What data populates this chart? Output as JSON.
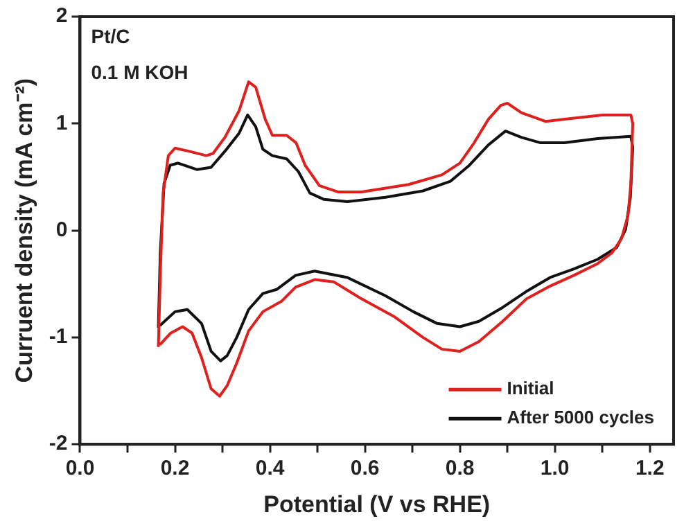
{
  "chart_data": {
    "type": "line",
    "xlabel": "Potential (V vs RHE)",
    "ylabel": "Curruent density (mA cm⁻²)",
    "annotations": [
      "Pt/C",
      "0.1 M KOH"
    ],
    "xlim": [
      0,
      1.25
    ],
    "ylim": [
      -2,
      2
    ],
    "xticks": [
      {
        "value": 0,
        "label": "0.0"
      },
      {
        "value": 0.1,
        "label": null
      },
      0.2,
      {
        "value": 0.3,
        "label": null
      },
      0.4,
      {
        "value": 0.5,
        "label": null
      },
      0.6,
      {
        "value": 0.7,
        "label": null
      },
      0.8,
      {
        "value": 0.9,
        "label": null
      },
      {
        "value": 1,
        "label": "1.0"
      },
      {
        "value": 1.1,
        "label": null
      },
      1.2
    ],
    "yticks": [
      -2,
      -1,
      0,
      1,
      2
    ],
    "grid": false,
    "legend": "bottom right",
    "line_style": "solid",
    "marker": "none",
    "series": [
      {
        "name": "Initial",
        "color": "#e0201c",
        "x": [
          0.165,
          0.169,
          0.175,
          0.186,
          0.2,
          0.23,
          0.266,
          0.28,
          0.305,
          0.335,
          0.355,
          0.37,
          0.39,
          0.405,
          0.435,
          0.455,
          0.474,
          0.504,
          0.544,
          0.593,
          0.692,
          0.762,
          0.8,
          0.83,
          0.86,
          0.886,
          0.9,
          0.93,
          0.98,
          1.04,
          1.1,
          1.16,
          1.164,
          1.16,
          1.154,
          1.14,
          1.12,
          1.09,
          1.04,
          0.99,
          0.94,
          0.89,
          0.84,
          0.8,
          0.762,
          0.722,
          0.663,
          0.593,
          0.534,
          0.494,
          0.454,
          0.425,
          0.385,
          0.355,
          0.33,
          0.31,
          0.294,
          0.276,
          0.256,
          0.236,
          0.216,
          0.191,
          0.168
        ],
        "values": [
          -1.09,
          -0.42,
          0.35,
          0.7,
          0.77,
          0.74,
          0.7,
          0.72,
          0.87,
          1.12,
          1.39,
          1.34,
          1.04,
          0.89,
          0.89,
          0.82,
          0.61,
          0.42,
          0.36,
          0.36,
          0.43,
          0.52,
          0.63,
          0.82,
          1.04,
          1.17,
          1.19,
          1.1,
          1.02,
          1.05,
          1.08,
          1.08,
          1.0,
          0.44,
          0.14,
          -0.08,
          -0.21,
          -0.31,
          -0.42,
          -0.52,
          -0.64,
          -0.85,
          -1.04,
          -1.13,
          -1.11,
          -1.0,
          -0.81,
          -0.64,
          -0.48,
          -0.46,
          -0.53,
          -0.66,
          -0.76,
          -0.94,
          -1.24,
          -1.45,
          -1.55,
          -1.48,
          -1.19,
          -0.96,
          -0.9,
          -0.96,
          -1.07
        ]
      },
      {
        "name": "After 5000 cycles",
        "color": "#111111",
        "x": [
          0.165,
          0.169,
          0.177,
          0.19,
          0.206,
          0.246,
          0.276,
          0.305,
          0.335,
          0.353,
          0.37,
          0.385,
          0.405,
          0.435,
          0.46,
          0.484,
          0.514,
          0.563,
          0.643,
          0.722,
          0.78,
          0.82,
          0.86,
          0.896,
          0.93,
          0.97,
          1.02,
          1.09,
          1.16,
          1.164,
          1.159,
          1.149,
          1.13,
          1.09,
          1.04,
          0.99,
          0.94,
          0.89,
          0.84,
          0.8,
          0.752,
          0.702,
          0.643,
          0.563,
          0.494,
          0.454,
          0.415,
          0.385,
          0.355,
          0.33,
          0.31,
          0.296,
          0.276,
          0.256,
          0.226,
          0.2,
          0.168
        ],
        "values": [
          -0.91,
          -0.21,
          0.44,
          0.61,
          0.63,
          0.57,
          0.59,
          0.74,
          0.91,
          1.08,
          0.97,
          0.76,
          0.7,
          0.67,
          0.55,
          0.35,
          0.29,
          0.27,
          0.31,
          0.37,
          0.46,
          0.61,
          0.8,
          0.93,
          0.87,
          0.82,
          0.82,
          0.86,
          0.88,
          0.78,
          0.31,
          0.01,
          -0.16,
          -0.27,
          -0.36,
          -0.44,
          -0.57,
          -0.72,
          -0.85,
          -0.9,
          -0.87,
          -0.76,
          -0.61,
          -0.44,
          -0.38,
          -0.42,
          -0.55,
          -0.59,
          -0.74,
          -1.0,
          -1.17,
          -1.22,
          -1.13,
          -0.87,
          -0.74,
          -0.76,
          -0.89
        ]
      }
    ]
  }
}
